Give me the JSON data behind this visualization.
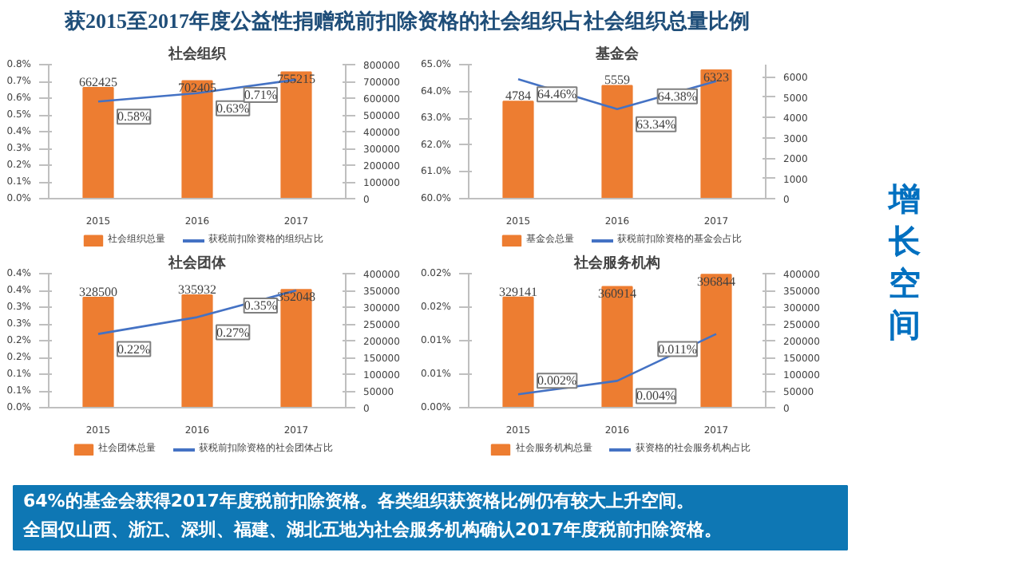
{
  "chart_data": [
    {
      "type": "bar",
      "title": "社会组织",
      "categories": [
        "2015",
        "2016",
        "2017"
      ],
      "legend": "bottom",
      "ylim": [
        0,
        0.8
      ],
      "yticks": [
        {
          "value": 0,
          "label": "0.0%"
        },
        {
          "value": 0.1,
          "label": "0.1%"
        },
        {
          "value": 0.2,
          "label": "0.2%"
        },
        {
          "value": 0.3,
          "label": "0.3%"
        },
        {
          "value": 0.4,
          "label": "0.4%"
        },
        {
          "value": 0.5,
          "label": "0.5%"
        },
        {
          "value": 0.6,
          "label": "0.6%"
        },
        {
          "value": 0.7,
          "label": "0.7%"
        },
        {
          "value": 0.8,
          "label": "0.8%"
        }
      ],
      "y2lim": [
        0,
        800000
      ],
      "y2ticks": [
        0,
        100000,
        200000,
        300000,
        400000,
        500000,
        600000,
        700000,
        800000
      ],
      "series": [
        {
          "name": "社会组织总量",
          "type": "bar",
          "axis": "y2",
          "color": "#ed7d31",
          "values": [
            662425,
            702405,
            755215
          ],
          "value_labels": [
            "662425",
            "702405",
            "755215"
          ]
        },
        {
          "name": "获税前扣除资格的组织占比",
          "type": "line",
          "color": "#4472c4",
          "values": [
            0.58,
            0.63,
            0.71
          ],
          "value_labels": [
            "0.58%",
            "0.63%",
            "0.71%"
          ]
        }
      ]
    },
    {
      "type": "bar",
      "title": "基金会",
      "categories": [
        "2015",
        "2016",
        "2017"
      ],
      "legend": "bottom",
      "ylim": [
        60,
        65
      ],
      "yticks": [
        {
          "value": 60,
          "label": "60.0%"
        },
        {
          "value": 61,
          "label": "61.0%"
        },
        {
          "value": 62,
          "label": "62.0%"
        },
        {
          "value": 63,
          "label": "63.0%"
        },
        {
          "value": 64,
          "label": "64.0%"
        },
        {
          "value": 65,
          "label": "65.0%"
        }
      ],
      "y2lim": [
        0,
        6600
      ],
      "y2ticks": [
        0,
        1000,
        2000,
        3000,
        4000,
        5000,
        6000
      ],
      "series": [
        {
          "name": "基金会总量",
          "type": "bar",
          "axis": "y2",
          "color": "#ed7d31",
          "values": [
            4784,
            5559,
            6323
          ],
          "value_labels": [
            "4784",
            "5559",
            "6323"
          ]
        },
        {
          "name": "获税前扣除资格的基金会占比",
          "type": "line",
          "color": "#4472c4",
          "values": [
            64.46,
            63.34,
            64.38
          ],
          "value_labels": [
            "64.46%",
            "63.34%",
            "64.38%"
          ]
        }
      ]
    },
    {
      "type": "bar",
      "title": "社会团体",
      "categories": [
        "2015",
        "2016",
        "2017"
      ],
      "legend": "bottom",
      "ylim": [
        0,
        0.4
      ],
      "yticks": [
        {
          "value": 0,
          "label": "0.0%"
        },
        {
          "value": 0.05,
          "label": "0.1%"
        },
        {
          "value": 0.1,
          "label": "0.1%"
        },
        {
          "value": 0.15,
          "label": "0.2%"
        },
        {
          "value": 0.2,
          "label": "0.2%"
        },
        {
          "value": 0.25,
          "label": "0.3%"
        },
        {
          "value": 0.3,
          "label": "0.3%"
        },
        {
          "value": 0.35,
          "label": "0.4%"
        },
        {
          "value": 0.4,
          "label": "0.4%"
        }
      ],
      "y2lim": [
        0,
        400000
      ],
      "y2ticks": [
        0,
        50000,
        100000,
        150000,
        200000,
        250000,
        300000,
        350000,
        400000
      ],
      "series": [
        {
          "name": "社会团体总量",
          "type": "bar",
          "axis": "y2",
          "color": "#ed7d31",
          "values": [
            328500,
            335932,
            352048
          ],
          "value_labels": [
            "328500",
            "335932",
            "352048"
          ]
        },
        {
          "name": "获税前扣除资格的社会团体占比",
          "type": "line",
          "color": "#4472c4",
          "values": [
            0.22,
            0.27,
            0.35
          ],
          "value_labels": [
            "0.22%",
            "0.27%",
            "0.35%"
          ]
        }
      ]
    },
    {
      "type": "bar",
      "title": "社会服务机构",
      "categories": [
        "2015",
        "2016",
        "2017"
      ],
      "legend": "bottom",
      "ylim": [
        0,
        0.02
      ],
      "yticks": [
        {
          "value": 0,
          "label": "0.00%"
        },
        {
          "value": 0.005,
          "label": "0.01%"
        },
        {
          "value": 0.01,
          "label": "0.01%"
        },
        {
          "value": 0.015,
          "label": "0.02%"
        },
        {
          "value": 0.02,
          "label": "0.02%"
        }
      ],
      "y2lim": [
        0,
        400000
      ],
      "y2ticks": [
        0,
        50000,
        100000,
        150000,
        200000,
        250000,
        300000,
        350000,
        400000
      ],
      "series": [
        {
          "name": "社会服务机构总量",
          "type": "bar",
          "axis": "y2",
          "color": "#ed7d31",
          "values": [
            329141,
            360914,
            396844
          ],
          "value_labels": [
            "329141",
            "360914",
            "396844"
          ]
        },
        {
          "name": "获资格的社会服务机构占比",
          "type": "line",
          "color": "#4472c4",
          "values": [
            0.002,
            0.004,
            0.011
          ],
          "value_labels": [
            "0.002%",
            "0.004%",
            "0.011%"
          ]
        }
      ]
    },
    {
      "type": "other",
      "title": "获2015至2017年度公益性捐赠税前扣除资格的社会组织占社会组织总量比例",
      "subtitle": "增长空间",
      "annotations": [
        "64%的基金会获得2017年度税前扣除资格。各类组织获资格比例仍有较大上升空间。",
        "全国仅山西、浙江、深圳、福建、湖北五地为社会服务机构确认2017年度税前扣除资格。"
      ]
    }
  ]
}
